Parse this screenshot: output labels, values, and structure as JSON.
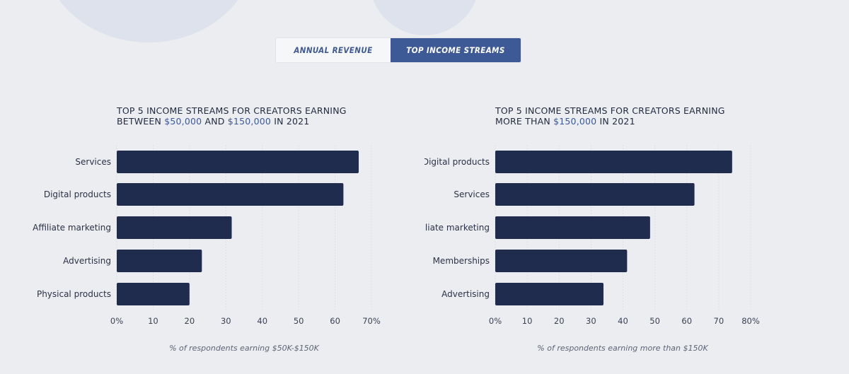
{
  "tabs": [
    {
      "label": "ANNUAL REVENUE",
      "active": false
    },
    {
      "label": "TOP INCOME STREAMS",
      "active": true
    }
  ],
  "colors": {
    "bar": "#202c4d",
    "accent": "#3d5a96",
    "grid": "#dcdfe6"
  },
  "chart_data": [
    {
      "type": "bar",
      "orientation": "horizontal",
      "title": {
        "pre": "TOP 5 INCOME STREAMS FOR CREATORS EARNING",
        "line2_pre": "BETWEEN ",
        "hl1": "$50,000",
        "mid": " AND ",
        "hl2": "$150,000",
        "post": " IN 2021"
      },
      "categories": [
        "Services",
        "Digital products",
        "Affiliate marketing",
        "Advertising",
        "Physical products"
      ],
      "values": [
        66.5,
        62.3,
        31.6,
        23.4,
        20.0
      ],
      "xlim": [
        0,
        70
      ],
      "xticks": [
        "0%",
        "10",
        "20",
        "30",
        "40",
        "50",
        "60",
        "70%"
      ],
      "xlabel": "% of respondents earning $50K-$150K",
      "grid": true
    },
    {
      "type": "bar",
      "orientation": "horizontal",
      "title": {
        "pre": "TOP 5 INCOME STREAMS FOR CREATORS EARNING",
        "line2_pre": "MORE THAN ",
        "hl1": "$150,000",
        "mid": "",
        "hl2": "",
        "post": " IN 2021"
      },
      "categories": [
        "Digital products",
        "Services",
        "Affiliate marketing",
        "Memberships",
        "Advertising"
      ],
      "values": [
        74.2,
        62.4,
        48.5,
        41.3,
        33.9
      ],
      "xlim": [
        0,
        80
      ],
      "xticks": [
        "0%",
        "10",
        "20",
        "30",
        "40",
        "50",
        "60",
        "70",
        "80%"
      ],
      "xlabel": "% of respondents earning more than $150K",
      "grid": true
    }
  ]
}
